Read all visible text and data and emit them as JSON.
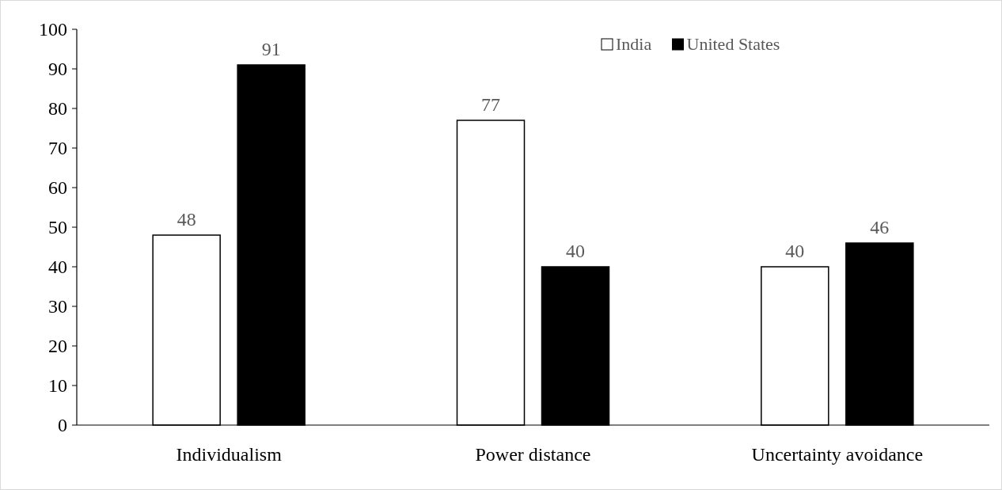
{
  "chart_data": {
    "type": "bar",
    "categories": [
      "Individualism",
      "Power distance",
      "Uncertainty avoidance"
    ],
    "series": [
      {
        "name": "India",
        "color": "#ffffff",
        "values": [
          48,
          77,
          40
        ]
      },
      {
        "name": "United States",
        "color": "#000000",
        "values": [
          91,
          40,
          46
        ]
      }
    ],
    "ylim": [
      0,
      100
    ],
    "yticks": [
      0,
      10,
      20,
      30,
      40,
      50,
      60,
      70,
      80,
      90,
      100
    ],
    "grid": false,
    "legend": "top right",
    "data_labels": true
  }
}
